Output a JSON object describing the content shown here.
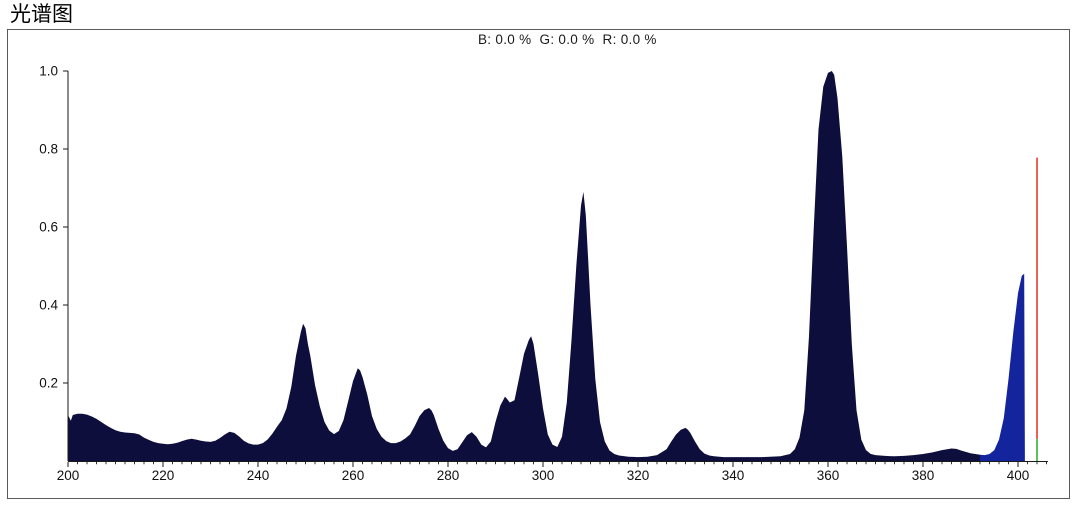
{
  "title": "光谱图",
  "readout": {
    "text": "B: 0.0 %  G: 0.0 %  R: 0.0 %"
  },
  "chart_data": {
    "type": "area",
    "title": "光谱图",
    "channel_readout": {
      "B": "0.0 %",
      "G": "0.0 %",
      "R": "0.0 %"
    },
    "xlim": [
      200,
      406.3
    ],
    "ylim": [
      0,
      1.0
    ],
    "x_ticks": [
      200,
      220,
      240,
      260,
      280,
      300,
      320,
      340,
      360,
      380,
      400
    ],
    "x_minor_ticks": {
      "from": 200,
      "to": 406,
      "step": 2
    },
    "y_ticks": [
      0.2,
      0.4,
      0.6,
      0.8,
      1.0
    ],
    "grid": false,
    "legend_position": "none",
    "axis_color": "#1a1a1a",
    "notable_peaks": [
      {
        "x": 249.5,
        "y": 0.35
      },
      {
        "x": 261,
        "y": 0.24
      },
      {
        "x": 276,
        "y": 0.14
      },
      {
        "x": 292,
        "y": 0.165
      },
      {
        "x": 297.5,
        "y": 0.32
      },
      {
        "x": 308.5,
        "y": 0.69
      },
      {
        "x": 330,
        "y": 0.085
      },
      {
        "x": 360.5,
        "y": 1.0
      },
      {
        "x": 386,
        "y": 0.032
      },
      {
        "x": 401,
        "y": 0.48
      }
    ],
    "series": [
      {
        "name": "uv-spectrum-area",
        "color": "#0e0e3c",
        "points": [
          [
            200,
            0.118
          ],
          [
            200.6,
            0.103
          ],
          [
            201,
            0.118
          ],
          [
            202,
            0.121
          ],
          [
            203,
            0.121
          ],
          [
            204,
            0.119
          ],
          [
            205,
            0.114
          ],
          [
            206,
            0.108
          ],
          [
            207,
            0.1
          ],
          [
            208,
            0.092
          ],
          [
            209,
            0.085
          ],
          [
            210,
            0.079
          ],
          [
            211,
            0.075
          ],
          [
            212,
            0.073
          ],
          [
            213,
            0.072
          ],
          [
            214,
            0.071
          ],
          [
            215,
            0.068
          ],
          [
            216,
            0.06
          ],
          [
            217,
            0.054
          ],
          [
            218,
            0.049
          ],
          [
            219,
            0.046
          ],
          [
            220,
            0.044
          ],
          [
            221,
            0.043
          ],
          [
            222,
            0.044
          ],
          [
            223,
            0.047
          ],
          [
            224,
            0.051
          ],
          [
            225,
            0.055
          ],
          [
            226,
            0.057
          ],
          [
            227,
            0.055
          ],
          [
            228,
            0.052
          ],
          [
            229,
            0.05
          ],
          [
            230,
            0.049
          ],
          [
            231,
            0.052
          ],
          [
            232,
            0.059
          ],
          [
            233,
            0.068
          ],
          [
            234,
            0.075
          ],
          [
            235,
            0.072
          ],
          [
            236,
            0.063
          ],
          [
            237,
            0.052
          ],
          [
            238,
            0.045
          ],
          [
            239,
            0.042
          ],
          [
            240,
            0.042
          ],
          [
            241,
            0.046
          ],
          [
            242,
            0.055
          ],
          [
            243,
            0.07
          ],
          [
            244,
            0.088
          ],
          [
            245,
            0.105
          ],
          [
            246,
            0.135
          ],
          [
            247,
            0.19
          ],
          [
            248,
            0.27
          ],
          [
            249,
            0.33
          ],
          [
            249.5,
            0.352
          ],
          [
            250,
            0.34
          ],
          [
            250.5,
            0.3
          ],
          [
            251,
            0.27
          ],
          [
            252,
            0.195
          ],
          [
            253,
            0.14
          ],
          [
            254,
            0.1
          ],
          [
            255,
            0.078
          ],
          [
            256,
            0.069
          ],
          [
            257,
            0.077
          ],
          [
            258,
            0.105
          ],
          [
            259,
            0.155
          ],
          [
            260,
            0.205
          ],
          [
            261,
            0.238
          ],
          [
            261.5,
            0.232
          ],
          [
            262,
            0.215
          ],
          [
            263,
            0.17
          ],
          [
            264,
            0.115
          ],
          [
            265,
            0.082
          ],
          [
            266,
            0.062
          ],
          [
            267,
            0.051
          ],
          [
            268,
            0.046
          ],
          [
            269,
            0.046
          ],
          [
            270,
            0.05
          ],
          [
            271,
            0.058
          ],
          [
            272,
            0.068
          ],
          [
            273,
            0.09
          ],
          [
            274,
            0.115
          ],
          [
            275,
            0.13
          ],
          [
            276,
            0.136
          ],
          [
            276.5,
            0.13
          ],
          [
            277,
            0.118
          ],
          [
            278,
            0.082
          ],
          [
            279,
            0.052
          ],
          [
            280,
            0.033
          ],
          [
            281,
            0.026
          ],
          [
            282,
            0.03
          ],
          [
            283,
            0.048
          ],
          [
            284,
            0.066
          ],
          [
            285,
            0.074
          ],
          [
            286,
            0.062
          ],
          [
            287,
            0.042
          ],
          [
            288,
            0.035
          ],
          [
            289,
            0.05
          ],
          [
            290,
            0.1
          ],
          [
            291,
            0.142
          ],
          [
            292,
            0.165
          ],
          [
            292.5,
            0.158
          ],
          [
            293,
            0.15
          ],
          [
            294,
            0.156
          ],
          [
            295,
            0.215
          ],
          [
            296,
            0.275
          ],
          [
            297,
            0.31
          ],
          [
            297.5,
            0.32
          ],
          [
            298,
            0.3
          ],
          [
            299,
            0.22
          ],
          [
            300,
            0.135
          ],
          [
            301,
            0.068
          ],
          [
            302,
            0.042
          ],
          [
            303,
            0.036
          ],
          [
            304,
            0.062
          ],
          [
            305,
            0.15
          ],
          [
            306,
            0.31
          ],
          [
            307,
            0.5
          ],
          [
            308,
            0.655
          ],
          [
            308.5,
            0.69
          ],
          [
            309,
            0.63
          ],
          [
            309.5,
            0.52
          ],
          [
            310,
            0.4
          ],
          [
            311,
            0.21
          ],
          [
            312,
            0.1
          ],
          [
            313,
            0.05
          ],
          [
            314,
            0.027
          ],
          [
            315,
            0.018
          ],
          [
            316,
            0.014
          ],
          [
            318,
            0.011
          ],
          [
            320,
            0.01
          ],
          [
            322,
            0.011
          ],
          [
            324,
            0.015
          ],
          [
            326,
            0.03
          ],
          [
            327,
            0.05
          ],
          [
            328,
            0.068
          ],
          [
            329,
            0.08
          ],
          [
            330,
            0.085
          ],
          [
            330.5,
            0.08
          ],
          [
            331,
            0.072
          ],
          [
            332,
            0.05
          ],
          [
            333,
            0.03
          ],
          [
            334,
            0.019
          ],
          [
            335,
            0.014
          ],
          [
            336,
            0.012
          ],
          [
            338,
            0.01
          ],
          [
            342,
            0.01
          ],
          [
            346,
            0.01
          ],
          [
            350,
            0.012
          ],
          [
            352,
            0.018
          ],
          [
            353,
            0.03
          ],
          [
            354,
            0.06
          ],
          [
            355,
            0.13
          ],
          [
            356,
            0.32
          ],
          [
            357,
            0.6
          ],
          [
            358,
            0.85
          ],
          [
            359,
            0.96
          ],
          [
            360,
            0.995
          ],
          [
            360.8,
            1.0
          ],
          [
            361.3,
            0.99
          ],
          [
            362,
            0.93
          ],
          [
            363,
            0.78
          ],
          [
            364,
            0.55
          ],
          [
            365,
            0.3
          ],
          [
            366,
            0.13
          ],
          [
            367,
            0.055
          ],
          [
            368,
            0.028
          ],
          [
            369,
            0.018
          ],
          [
            370,
            0.015
          ],
          [
            372,
            0.013
          ],
          [
            374,
            0.012
          ],
          [
            376,
            0.013
          ],
          [
            378,
            0.015
          ],
          [
            380,
            0.018
          ],
          [
            382,
            0.022
          ],
          [
            384,
            0.028
          ],
          [
            386,
            0.032
          ],
          [
            387,
            0.031
          ],
          [
            388,
            0.027
          ],
          [
            390,
            0.02
          ],
          [
            392,
            0.016
          ]
        ]
      },
      {
        "name": "visible-spectrum-area",
        "color": "#14249c",
        "points": [
          [
            392,
            0.016
          ],
          [
            393,
            0.015
          ],
          [
            394,
            0.018
          ],
          [
            395,
            0.028
          ],
          [
            396,
            0.055
          ],
          [
            397,
            0.11
          ],
          [
            398,
            0.21
          ],
          [
            399,
            0.33
          ],
          [
            400,
            0.43
          ],
          [
            400.8,
            0.475
          ],
          [
            401.3,
            0.48
          ],
          [
            401.45,
            0.0
          ]
        ]
      }
    ],
    "markers": [
      {
        "name": "red-marker-line",
        "color": "#e8392c",
        "x": 404,
        "y_from": 0.056,
        "y_to": 0.778
      },
      {
        "name": "green-marker-line",
        "color": "#32b332",
        "x": 404,
        "y_from": 0.0,
        "y_to": 0.056
      }
    ]
  }
}
